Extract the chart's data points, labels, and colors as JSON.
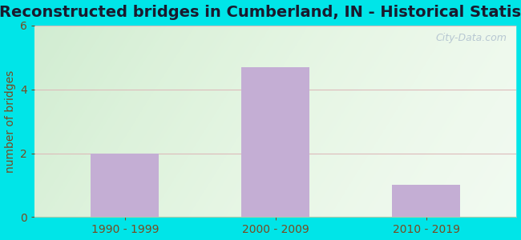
{
  "title": "Reconstructed bridges in Cumberland, IN - Historical Statistics",
  "categories": [
    "1990 - 1999",
    "2000 - 2009",
    "2010 - 2019"
  ],
  "values": [
    2,
    4.7,
    1
  ],
  "bar_color": "#c4aed4",
  "ylabel": "number of bridges",
  "ylim": [
    0,
    6
  ],
  "yticks": [
    0,
    2,
    4,
    6
  ],
  "background_outer": "#00e5e8",
  "title_fontsize": 14,
  "title_color": "#1a1a2e",
  "ylabel_fontsize": 10,
  "tick_fontsize": 10,
  "tick_color": "#7a4a20",
  "ylabel_color": "#7a4a20",
  "watermark": "City-Data.com",
  "grid_color": "#ddbbbb",
  "grid_linewidth": 0.8
}
